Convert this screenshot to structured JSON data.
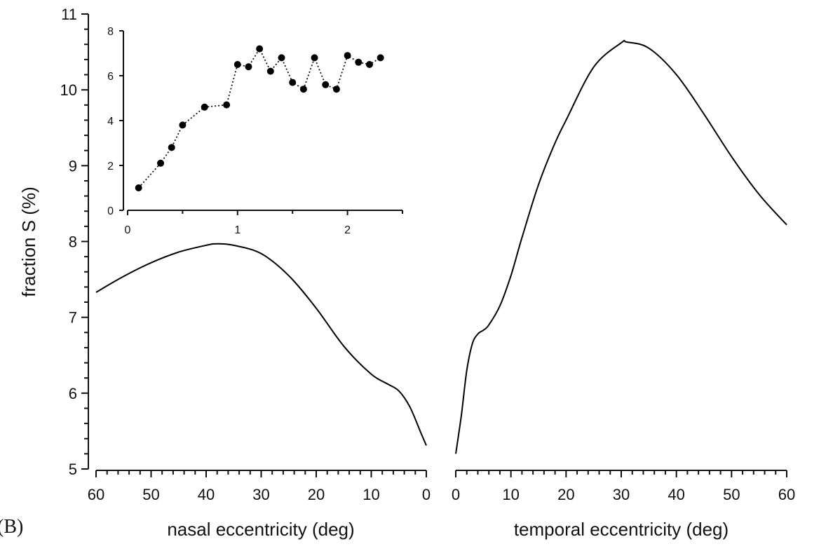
{
  "panel_label": "(B)",
  "chart_data": [
    {
      "type": "line",
      "panel": "main-nasal",
      "xlabel": "nasal eccentricity (deg)",
      "ylabel": "fraction S (%)",
      "xlim": [
        60,
        0
      ],
      "ylim": [
        5,
        11
      ],
      "xticks": [
        60,
        50,
        40,
        30,
        20,
        10,
        0
      ],
      "yticks": [
        5,
        6,
        7,
        8,
        9,
        10,
        11
      ],
      "x": [
        60,
        55,
        50,
        45,
        40,
        38,
        35,
        30,
        25,
        20,
        15,
        10,
        7,
        5,
        3,
        1,
        0
      ],
      "y": [
        7.33,
        7.54,
        7.72,
        7.86,
        7.95,
        7.97,
        7.95,
        7.84,
        7.55,
        7.12,
        6.62,
        6.25,
        6.12,
        6.03,
        5.82,
        5.48,
        5.31
      ]
    },
    {
      "type": "line",
      "panel": "main-temporal",
      "xlabel": "temporal eccentricity (deg)",
      "xlim": [
        0,
        60
      ],
      "ylim": [
        5,
        11
      ],
      "xticks": [
        0,
        10,
        20,
        30,
        40,
        50,
        60
      ],
      "x": [
        0,
        1,
        2,
        3,
        4,
        5,
        6,
        8,
        10,
        12,
        15,
        18,
        20,
        25,
        30,
        31,
        35,
        40,
        45,
        50,
        55,
        60
      ],
      "y": [
        5.2,
        5.7,
        6.3,
        6.65,
        6.78,
        6.83,
        6.9,
        7.15,
        7.55,
        8.05,
        8.75,
        9.3,
        9.6,
        10.3,
        10.62,
        10.63,
        10.55,
        10.2,
        9.68,
        9.12,
        8.62,
        8.22
      ]
    },
    {
      "type": "scatter",
      "panel": "inset",
      "style": "dotted line with filled circle markers",
      "xlim": [
        0,
        2.5
      ],
      "ylim": [
        0,
        8
      ],
      "xticks": [
        0,
        1,
        2
      ],
      "yticks": [
        0,
        2,
        4,
        6,
        8
      ],
      "x": [
        0.1,
        0.3,
        0.4,
        0.5,
        0.7,
        0.9,
        1.0,
        1.1,
        1.2,
        1.3,
        1.4,
        1.5,
        1.6,
        1.7,
        1.8,
        1.9,
        2.0,
        2.1,
        2.2,
        2.3
      ],
      "y": [
        1.0,
        2.1,
        2.8,
        3.8,
        4.6,
        4.7,
        6.5,
        6.4,
        7.2,
        6.2,
        6.8,
        5.7,
        5.4,
        6.8,
        5.6,
        5.4,
        6.9,
        6.6,
        6.5,
        6.8
      ]
    }
  ]
}
